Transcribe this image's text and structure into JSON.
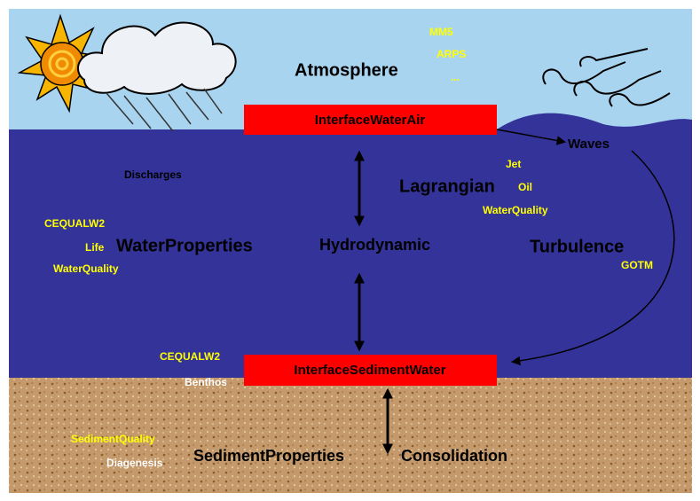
{
  "atmosphere": {
    "label": "Atmosphere",
    "models": [
      "MM5",
      "ARPS",
      "..."
    ]
  },
  "interface_water_air": "InterfaceWaterAir",
  "waves": "Waves",
  "discharges": "Discharges",
  "lagrangian": {
    "label": "Lagrangian",
    "modules": [
      "Jet",
      "Oil",
      "WaterQuality"
    ]
  },
  "water_properties": {
    "label": "WaterProperties",
    "modules": [
      "CEQUALW2",
      "Life",
      "WaterQuality"
    ]
  },
  "hydrodynamic": "Hydrodynamic",
  "turbulence": {
    "label": "Turbulence",
    "modules": [
      "GOTM"
    ]
  },
  "interface_sediment_water": {
    "label": "InterfaceSedimentWater",
    "modules": [
      "CEQUALW2",
      "Benthos"
    ]
  },
  "sediment_properties": {
    "label": "SedimentProperties",
    "modules": [
      "SedimentQuality",
      "Diagenesis"
    ]
  },
  "consolidation": "Consolidation"
}
